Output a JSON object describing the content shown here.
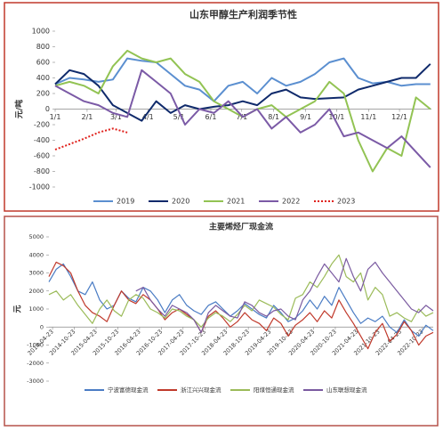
{
  "chart_data": [
    {
      "type": "line",
      "title": "山东甲醇生产利润季节性",
      "y_label": "元/吨",
      "x": [
        0,
        14,
        28,
        42,
        56,
        70,
        84,
        98,
        112,
        126,
        140,
        154,
        168,
        182,
        196,
        210,
        224,
        238,
        252,
        266,
        280,
        294,
        308,
        322,
        336,
        350,
        364
      ],
      "xlim": [
        0,
        365
      ],
      "xticks": [
        {
          "value": 0,
          "label": "1/1"
        },
        {
          "value": 31,
          "label": "2/1"
        },
        {
          "value": 59,
          "label": "3/1"
        },
        {
          "value": 90,
          "label": "4/1"
        },
        {
          "value": 120,
          "label": "5/1"
        },
        {
          "value": 151,
          "label": "6/1"
        },
        {
          "value": 181,
          "label": "7/1"
        },
        {
          "value": 212,
          "label": "8/1"
        },
        {
          "value": 243,
          "label": "9/1"
        },
        {
          "value": 273,
          "label": "10/1"
        },
        {
          "value": 304,
          "label": "11/1"
        },
        {
          "value": 334,
          "label": "12/1"
        }
      ],
      "ylim": [
        -1000,
        1000
      ],
      "yticks": [
        -1000,
        -800,
        -600,
        -400,
        -200,
        0,
        200,
        400,
        600,
        800,
        1000
      ],
      "series": [
        {
          "name": "2019",
          "color": "#5b8fd0",
          "values": [
            320,
            400,
            380,
            350,
            380,
            650,
            620,
            600,
            450,
            300,
            250,
            100,
            300,
            350,
            200,
            400,
            300,
            350,
            450,
            600,
            650,
            400,
            330,
            350,
            300,
            320,
            320
          ]
        },
        {
          "name": "2020",
          "color": "#0f2a6b",
          "values": [
            320,
            500,
            450,
            300,
            50,
            -50,
            -150,
            100,
            -50,
            50,
            0,
            30,
            50,
            100,
            50,
            200,
            250,
            150,
            130,
            140,
            150,
            250,
            300,
            350,
            400,
            400,
            580
          ]
        },
        {
          "name": "2021",
          "color": "#92c353",
          "values": [
            300,
            350,
            300,
            200,
            550,
            750,
            650,
            600,
            650,
            450,
            350,
            100,
            0,
            -100,
            0,
            50,
            -100,
            0,
            100,
            350,
            200,
            -400,
            -800,
            -500,
            -600,
            150,
            0
          ]
        },
        {
          "name": "2022",
          "color": "#7b5aa6",
          "values": [
            300,
            200,
            100,
            50,
            -50,
            -100,
            500,
            350,
            200,
            -200,
            0,
            -50,
            100,
            -100,
            0,
            -250,
            -100,
            -300,
            -200,
            0,
            -350,
            -300,
            -400,
            -500,
            -350,
            -550,
            -750
          ]
        },
        {
          "name": "2023",
          "color": "#e0201b",
          "dashed": true,
          "values": [
            -520,
            -450,
            -380,
            -300,
            -250,
            -300,
            null,
            null,
            null,
            null,
            null,
            null,
            null,
            null,
            null,
            null,
            null,
            null,
            null,
            null,
            null,
            null,
            null,
            null,
            null,
            null,
            null
          ]
        }
      ]
    },
    {
      "type": "line",
      "title": "主要烯烃厂现金流",
      "y_label": "元",
      "x": [
        -1,
        1,
        3,
        5,
        7,
        9,
        11,
        13,
        15,
        17,
        19,
        21,
        23,
        25,
        27,
        29,
        31,
        33,
        35,
        37,
        39,
        41,
        43,
        45,
        47,
        49,
        51,
        53,
        55,
        57,
        59,
        61,
        63,
        65,
        67,
        69,
        71,
        73,
        75,
        77,
        79,
        81,
        83,
        85,
        87,
        89,
        91,
        93,
        95,
        97,
        99,
        101,
        103,
        105
      ],
      "xlim": [
        -1,
        105
      ],
      "xticks": [
        {
          "value": 0,
          "label": "2014-04-23"
        },
        {
          "value": 6,
          "label": "2014-10-23"
        },
        {
          "value": 12,
          "label": "2015-04-23"
        },
        {
          "value": 18,
          "label": "2015-10-23"
        },
        {
          "value": 24,
          "label": "2016-04-23"
        },
        {
          "value": 30,
          "label": "2016-10-23"
        },
        {
          "value": 36,
          "label": "2017-04-23"
        },
        {
          "value": 42,
          "label": "2017-10-23"
        },
        {
          "value": 48,
          "label": "2018-04-23"
        },
        {
          "value": 54,
          "label": "2018-10-23"
        },
        {
          "value": 60,
          "label": "2019-04-23"
        },
        {
          "value": 66,
          "label": "2019-10-23"
        },
        {
          "value": 72,
          "label": "2020-04-23"
        },
        {
          "value": 78,
          "label": "2020-10-23"
        },
        {
          "value": 84,
          "label": "2021-04-23"
        },
        {
          "value": 90,
          "label": "2021-10-23"
        },
        {
          "value": 96,
          "label": "2022-04-23"
        },
        {
          "value": 102,
          "label": "2022-10-23"
        }
      ],
      "ylim": [
        -3000,
        5000
      ],
      "yticks": [
        -3000,
        -2000,
        -1000,
        0,
        1000,
        2000,
        3000,
        4000,
        5000
      ],
      "series": [
        {
          "name": "宁波富德现金流",
          "color": "#4a7cc4",
          "values": [
            2500,
            3200,
            3500,
            2800,
            2000,
            1800,
            2500,
            1500,
            1000,
            1200,
            2000,
            1600,
            1400,
            2200,
            2000,
            1500,
            800,
            1500,
            1800,
            1200,
            900,
            700,
            1200,
            1400,
            1000,
            600,
            900,
            1300,
            1000,
            700,
            500,
            1200,
            800,
            300,
            500,
            900,
            1500,
            1000,
            1700,
            1200,
            2200,
            1500,
            800,
            200,
            500,
            300,
            600,
            0,
            -300,
            400,
            -200,
            -500,
            100,
            -200
          ]
        },
        {
          "name": "浙江兴兴现金流",
          "color": "#c0392b",
          "values": [
            2800,
            3600,
            3400,
            3000,
            2000,
            1200,
            800,
            600,
            300,
            1200,
            2000,
            1500,
            1300,
            1800,
            1500,
            1000,
            400,
            800,
            1000,
            700,
            400,
            -300,
            600,
            900,
            500,
            0,
            300,
            800,
            400,
            200,
            -200,
            500,
            200,
            -500,
            100,
            400,
            800,
            300,
            900,
            500,
            1500,
            800,
            200,
            -500,
            -1200,
            -300,
            200,
            -800,
            -400,
            300,
            -200,
            -1000,
            -500,
            -300
          ]
        },
        {
          "name": "阳煤恒通现金流",
          "color": "#9bbb59",
          "values": [
            1800,
            2000,
            1500,
            1800,
            1200,
            700,
            200,
            1000,
            1500,
            900,
            600,
            1500,
            1800,
            1600,
            1000,
            800,
            500,
            1000,
            900,
            600,
            400,
            0,
            500,
            800,
            600,
            300,
            700,
            1200,
            900,
            1500,
            1300,
            1100,
            700,
            400,
            1600,
            1800,
            2500,
            2200,
            2800,
            3500,
            4000,
            2800,
            2500,
            3000,
            1500,
            2200,
            1800,
            600,
            800,
            500,
            300,
            1000,
            600,
            800
          ]
        },
        {
          "name": "山东联想现金流",
          "color": "#7a5aa0",
          "values": [
            null,
            null,
            null,
            null,
            null,
            null,
            null,
            null,
            null,
            null,
            null,
            null,
            2000,
            2200,
            1500,
            1000,
            600,
            1200,
            1000,
            800,
            400,
            -300,
            800,
            1200,
            900,
            600,
            500,
            1400,
            1200,
            800,
            600,
            900,
            1000,
            600,
            400,
            1500,
            2000,
            2800,
            3500,
            3000,
            2500,
            3800,
            2800,
            2000,
            3200,
            3600,
            3000,
            2500,
            2000,
            1500,
            1000,
            800,
            1200,
            900
          ]
        }
      ]
    }
  ]
}
